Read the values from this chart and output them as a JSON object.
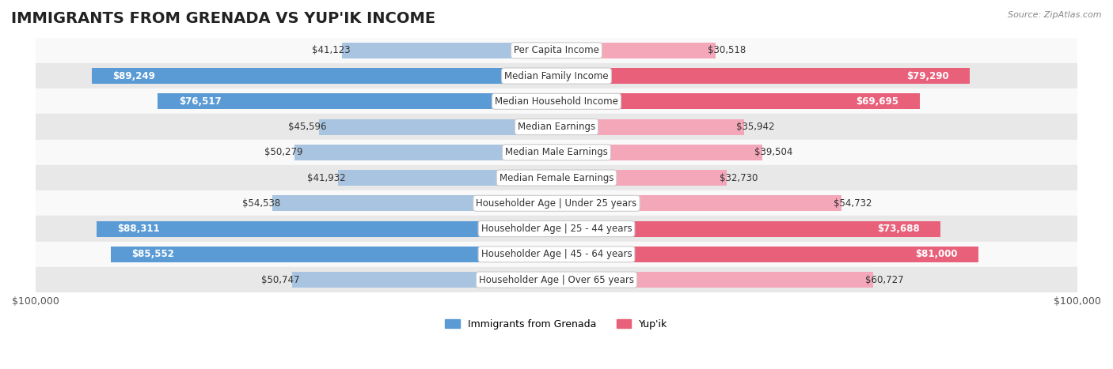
{
  "title": "IMMIGRANTS FROM GRENADA VS YUP'IK INCOME",
  "source": "Source: ZipAtlas.com",
  "categories": [
    "Per Capita Income",
    "Median Family Income",
    "Median Household Income",
    "Median Earnings",
    "Median Male Earnings",
    "Median Female Earnings",
    "Householder Age | Under 25 years",
    "Householder Age | 25 - 44 years",
    "Householder Age | 45 - 64 years",
    "Householder Age | Over 65 years"
  ],
  "grenada_values": [
    41123,
    89249,
    76517,
    45596,
    50279,
    41932,
    54538,
    88311,
    85552,
    50747
  ],
  "yupik_values": [
    30518,
    79290,
    69695,
    35942,
    39504,
    32730,
    54732,
    73688,
    81000,
    60727
  ],
  "grenada_labels": [
    "$41,123",
    "$89,249",
    "$76,517",
    "$45,596",
    "$50,279",
    "$41,932",
    "$54,538",
    "$88,311",
    "$85,552",
    "$50,747"
  ],
  "yupik_labels": [
    "$30,518",
    "$79,290",
    "$69,695",
    "$35,942",
    "$39,504",
    "$32,730",
    "$54,732",
    "$73,688",
    "$81,000",
    "$60,727"
  ],
  "max_value": 100000,
  "grenada_color_light": "#a8c4e0",
  "grenada_color_dark": "#5b9bd5",
  "yupik_color_light": "#f4a7b9",
  "yupik_color_dark": "#e8607a",
  "label_color_light": "#333333",
  "label_color_dark": "#ffffff",
  "background_color": "#f0f0f0",
  "row_bg_light": "#f9f9f9",
  "row_bg_dark": "#e8e8e8",
  "title_fontsize": 14,
  "label_fontsize": 8.5,
  "xlim": 100000,
  "legend_label_grenada": "Immigrants from Grenada",
  "legend_label_yupik": "Yup'ik"
}
